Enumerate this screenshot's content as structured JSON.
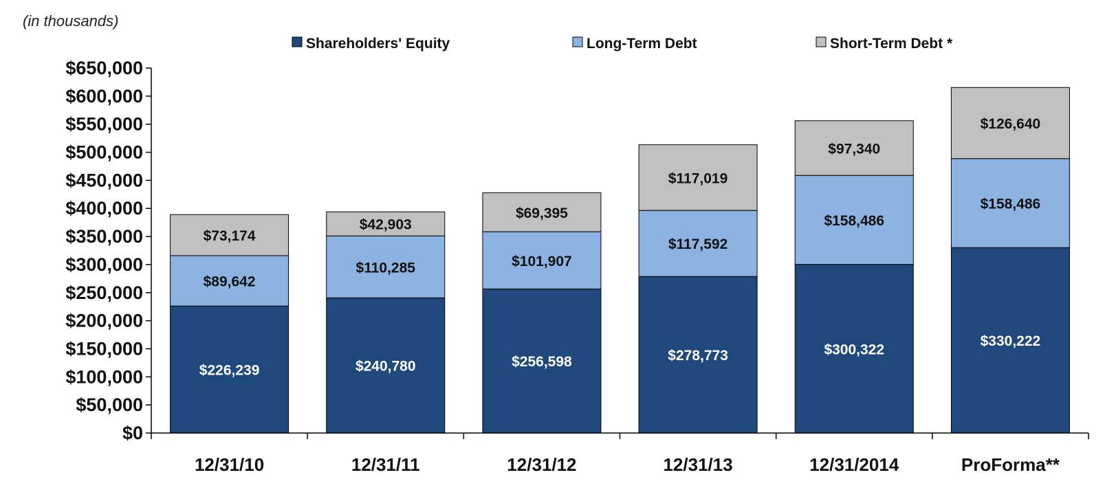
{
  "unit_note": "(in thousands)",
  "colors": {
    "equity": "#1f497d",
    "long_term_debt": "#8db3e2",
    "short_term_debt": "#c0c0c0",
    "axis": "#000000"
  },
  "legend": [
    {
      "key": "equity",
      "label": "Shareholders' Equity"
    },
    {
      "key": "long_term_debt",
      "label": "Long-Term Debt"
    },
    {
      "key": "short_term_debt",
      "label": "Short-Term Debt *"
    }
  ],
  "chart_data": {
    "type": "bar",
    "stacked": true,
    "categories": [
      "12/31/10",
      "12/31/11",
      "12/31/12",
      "12/31/13",
      "12/31/2014",
      "ProForma**"
    ],
    "series": [
      {
        "name": "Shareholders' Equity",
        "values": [
          226239,
          240780,
          256598,
          278773,
          300322,
          330222
        ]
      },
      {
        "name": "Long-Term Debt",
        "values": [
          89642,
          110285,
          101907,
          117592,
          158486,
          158486
        ]
      },
      {
        "name": "Short-Term Debt *",
        "values": [
          73174,
          42903,
          69395,
          117019,
          97340,
          126640
        ]
      }
    ],
    "value_labels": [
      [
        "$226,239",
        "$240,780",
        "$256,598",
        "$278,773",
        "$300,322",
        "$330,222"
      ],
      [
        "$89,642",
        "$110,285",
        "$101,907",
        "$117,592",
        "$158,486",
        "$158,486"
      ],
      [
        "$73,174",
        "$42,903",
        "$69,395",
        "$117,019",
        "$97,340",
        "$126,640"
      ]
    ],
    "y_ticks": [
      0,
      50000,
      100000,
      150000,
      200000,
      250000,
      300000,
      350000,
      400000,
      450000,
      500000,
      550000,
      600000,
      650000
    ],
    "y_tick_labels": [
      "$0",
      "$50,000",
      "$100,000",
      "$150,000",
      "$200,000",
      "$250,000",
      "$300,000",
      "$350,000",
      "$400,000",
      "$450,000",
      "$500,000",
      "$550,000",
      "$600,000",
      "$650,000"
    ],
    "ylim": [
      0,
      650000
    ],
    "grid": false,
    "legend_position": "top"
  }
}
